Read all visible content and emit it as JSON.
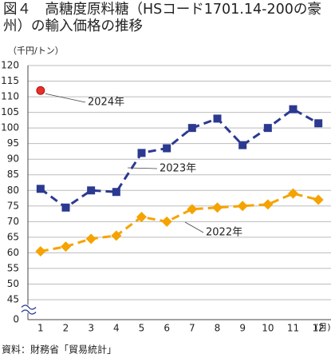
{
  "chart_data": {
    "type": "line",
    "title": "図４　高糖度原料糖（HSコード1701.14-200の豪州）の輸入価格の推移",
    "y_unit": "（千円/トン）",
    "x_unit": "(月)",
    "source": "資料：財務省「貿易統計」",
    "categories": [
      "1",
      "2",
      "3",
      "4",
      "5",
      "6",
      "7",
      "8",
      "9",
      "10",
      "11",
      "12"
    ],
    "series": [
      {
        "name": "2022年",
        "color": "#f5a300",
        "marker": "diamond",
        "dashed": true,
        "values": [
          60.5,
          62,
          64.5,
          65.5,
          71.5,
          70,
          74,
          74.5,
          75,
          75.5,
          79,
          77
        ]
      },
      {
        "name": "2023年",
        "color": "#2b3990",
        "marker": "square",
        "dashed": true,
        "values": [
          80.5,
          74.5,
          80,
          79.5,
          92,
          93.5,
          100,
          103,
          94.5,
          100,
          106,
          101.5
        ]
      },
      {
        "name": "2024年",
        "color": "#e8302a",
        "marker": "circle",
        "dashed": false,
        "values": [
          112,
          null,
          null,
          null,
          null,
          null,
          null,
          null,
          null,
          null,
          null,
          null
        ]
      }
    ],
    "ylim": [
      0,
      120
    ],
    "axis_break": [
      0,
      45
    ],
    "yticks": [
      0,
      45,
      50,
      55,
      60,
      65,
      70,
      75,
      80,
      85,
      90,
      95,
      100,
      105,
      110,
      115,
      120
    ],
    "grid": true
  }
}
